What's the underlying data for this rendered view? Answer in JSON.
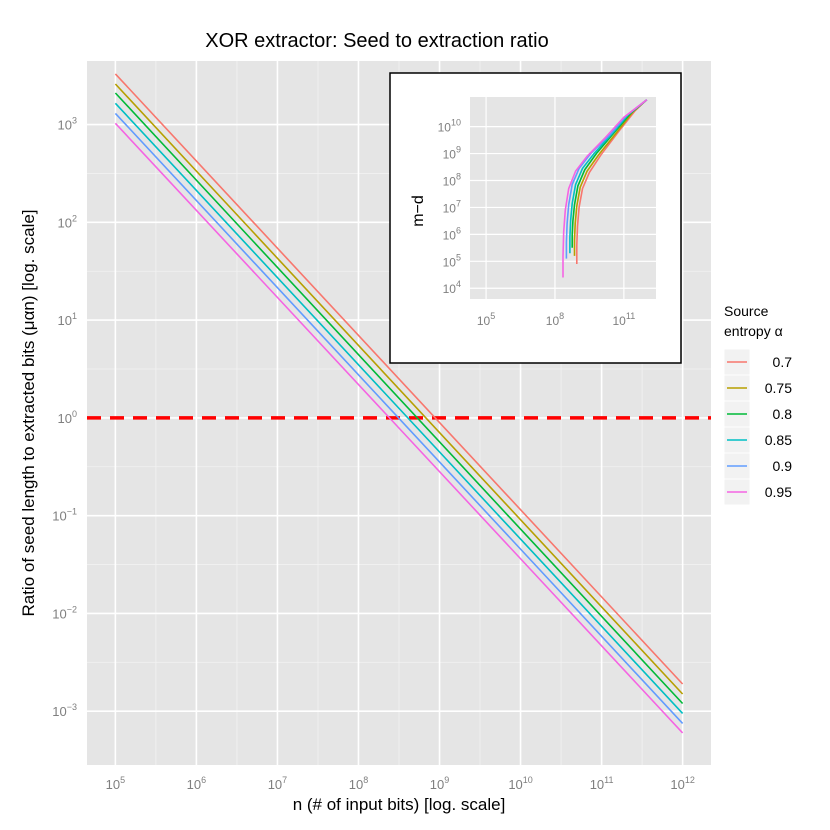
{
  "chart_data": {
    "type": "line",
    "title": "XOR extractor: Seed to extraction ratio",
    "xlabel": "n (# of input bits) [log. scale]",
    "ylabel": "Ratio of seed length to extracted bits (μαn) [log. scale]",
    "x_scale": "log10",
    "y_scale": "log10",
    "xlim_log10": [
      4.65,
      12.35
    ],
    "ylim_log10": [
      -3.55,
      3.65
    ],
    "x_ticks_log10": [
      5,
      6,
      7,
      8,
      9,
      10,
      11,
      12
    ],
    "y_ticks_log10": [
      -3,
      -2,
      -1,
      0,
      1,
      2,
      3
    ],
    "reference_line": {
      "y": 1,
      "style": "dashed",
      "color": "#ff0000"
    },
    "legend": {
      "title": "Source entropy α",
      "position": "right"
    },
    "series": [
      {
        "name": "0.7",
        "color": "#F8766D",
        "x": [
          100000,
          1000000000000
        ],
        "y": [
          3300,
          0.0019
        ]
      },
      {
        "name": "0.75",
        "color": "#B79F00",
        "x": [
          100000,
          1000000000000
        ],
        "y": [
          2600,
          0.0015
        ]
      },
      {
        "name": "0.8",
        "color": "#00BA38",
        "x": [
          100000,
          1000000000000
        ],
        "y": [
          2100,
          0.0012
        ]
      },
      {
        "name": "0.85",
        "color": "#00BFC4",
        "x": [
          100000,
          1000000000000
        ],
        "y": [
          1650,
          0.00095
        ]
      },
      {
        "name": "0.9",
        "color": "#619CFF",
        "x": [
          100000,
          1000000000000
        ],
        "y": [
          1300,
          0.00075
        ]
      },
      {
        "name": "0.95",
        "color": "#F564E3",
        "x": [
          100000,
          1000000000000
        ],
        "y": [
          1030,
          0.0006
        ]
      }
    ],
    "inset": {
      "type": "line",
      "ylabel": "m−d",
      "x_scale": "log10",
      "y_scale": "log10",
      "xlim_log10": [
        4.3,
        12.4
      ],
      "ylim_log10": [
        3.6,
        11.1
      ],
      "x_ticks_log10": [
        5,
        8,
        11
      ],
      "y_ticks_log10": [
        4,
        5,
        6,
        7,
        8,
        9,
        10
      ],
      "series": [
        {
          "name": "0.7",
          "x_log10": [
            8.95,
            8.95,
            8.98,
            9.05,
            9.2,
            9.5,
            10.0,
            10.8,
            11.5,
            12.0
          ],
          "y_log10": [
            4.9,
            5.6,
            6.3,
            7.0,
            7.7,
            8.3,
            8.95,
            9.85,
            10.6,
            11.0
          ]
        },
        {
          "name": "0.75",
          "x_log10": [
            8.85,
            8.85,
            8.88,
            8.95,
            9.1,
            9.4,
            9.9,
            10.7,
            11.4,
            12.0
          ],
          "y_log10": [
            5.2,
            5.8,
            6.4,
            7.05,
            7.75,
            8.35,
            8.95,
            9.8,
            10.55,
            11.0
          ]
        },
        {
          "name": "0.8",
          "x_log10": [
            8.75,
            8.75,
            8.78,
            8.85,
            9.0,
            9.3,
            9.8,
            10.6,
            11.3,
            12.0
          ],
          "y_log10": [
            5.5,
            6.0,
            6.5,
            7.1,
            7.8,
            8.4,
            9.0,
            9.8,
            10.5,
            11.0
          ]
        },
        {
          "name": "0.85",
          "x_log10": [
            8.65,
            8.65,
            8.68,
            8.75,
            8.9,
            9.2,
            9.7,
            10.5,
            11.2,
            12.0
          ],
          "y_log10": [
            5.3,
            5.9,
            6.5,
            7.15,
            7.85,
            8.45,
            9.0,
            9.75,
            10.45,
            11.0
          ]
        },
        {
          "name": "0.9",
          "x_log10": [
            8.5,
            8.5,
            8.53,
            8.6,
            8.75,
            9.05,
            9.55,
            10.4,
            11.1,
            12.0
          ],
          "y_log10": [
            5.1,
            5.7,
            6.4,
            7.1,
            7.85,
            8.45,
            9.0,
            9.7,
            10.4,
            11.0
          ]
        },
        {
          "name": "0.95",
          "x_log10": [
            8.35,
            8.35,
            8.38,
            8.45,
            8.6,
            8.9,
            9.4,
            10.2,
            11.0,
            12.0
          ],
          "y_log10": [
            4.4,
            5.2,
            6.1,
            6.9,
            7.7,
            8.35,
            8.9,
            9.6,
            10.35,
            11.0
          ]
        }
      ]
    }
  }
}
